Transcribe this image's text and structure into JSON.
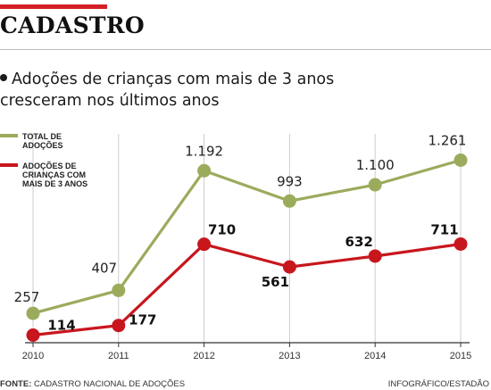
{
  "header": {
    "section": "CADASTRO",
    "headline": "Adoções de crianças com mais de 3 anos cresceram nos últimos anos"
  },
  "chart_data": {
    "type": "line",
    "x": [
      "2010",
      "2011",
      "2012",
      "2013",
      "2014",
      "2015"
    ],
    "series": [
      {
        "name": "TOTAL DE ADOÇÕES",
        "color": "#9bab5c",
        "values": [
          257,
          407,
          1192,
          993,
          1100,
          1261
        ],
        "labels": [
          "257",
          "407",
          "1.192",
          "993",
          "1.100",
          "1.261"
        ]
      },
      {
        "name": "ADOÇÕES DE CRIANÇAS COM MAIS DE 3 ANOS",
        "color": "#c8161d",
        "values": [
          114,
          177,
          710,
          561,
          632,
          711
        ],
        "labels": [
          "114",
          "177",
          "710",
          "561",
          "632",
          "711"
        ]
      }
    ],
    "legend": {
      "position": "top-left",
      "items": [
        {
          "lines": [
            "TOTAL DE",
            "ADOÇÕES"
          ]
        },
        {
          "lines": [
            "ADOÇÕES DE",
            "CRIANÇAS COM",
            "MAIS DE 3 ANOS"
          ]
        }
      ]
    },
    "grid": "vertical"
  },
  "footer": {
    "source_label": "FONTE:",
    "source": "CADASTRO NACIONAL DE ADOÇÕES",
    "credit": "INFOGRÁFICO/ESTADÃO"
  }
}
